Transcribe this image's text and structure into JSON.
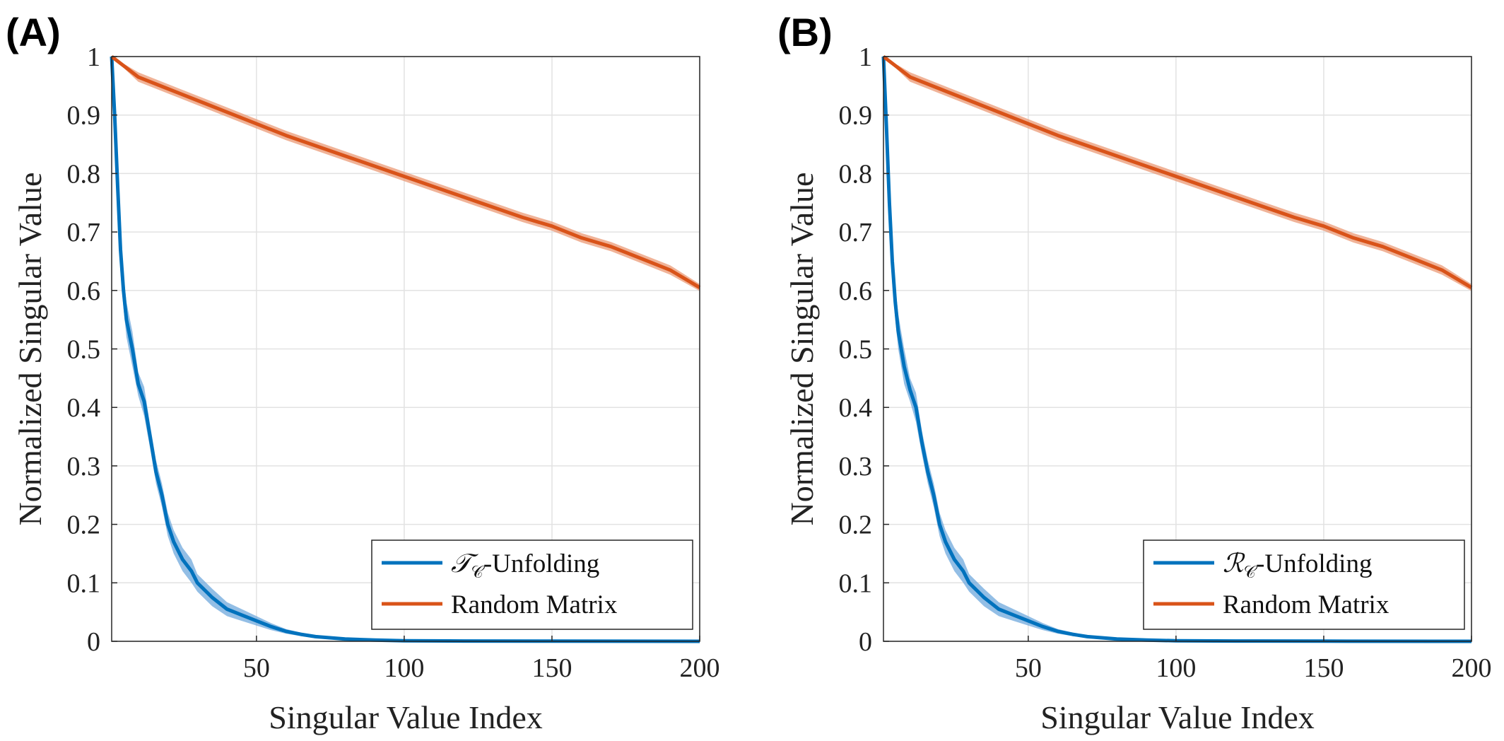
{
  "colors": {
    "blue": "#0072BD",
    "orange": "#D95319",
    "blue_band": "#6FA8DC",
    "orange_band": "#EB9A75"
  },
  "chart_data": [
    {
      "type": "line",
      "panel_label": "(A)",
      "xlabel": "Singular Value Index",
      "ylabel": "Normalized Singular Value",
      "xlim": [
        1,
        200
      ],
      "ylim": [
        0,
        1
      ],
      "x_ticks": [
        50,
        100,
        150,
        200
      ],
      "y_ticks": [
        0,
        0.1,
        0.2,
        0.3,
        0.4,
        0.5,
        0.6,
        0.7,
        0.8,
        0.9,
        1
      ],
      "y_tick_labels": [
        "0",
        "0.1",
        "0.2",
        "0.3",
        "0.4",
        "0.5",
        "0.6",
        "0.7",
        "0.8",
        "0.9",
        "1"
      ],
      "grid": true,
      "legend_position": "bottom-right",
      "series": [
        {
          "name_prefix": "𝒯",
          "name_sub": "𝒞",
          "name_suffix": "-Unfolding",
          "color": "#0072BD",
          "x": [
            1,
            2,
            3,
            4,
            5,
            6,
            8,
            10,
            12,
            14,
            16,
            18,
            20,
            22,
            25,
            28,
            30,
            35,
            40,
            45,
            50,
            55,
            60,
            65,
            70,
            80,
            90,
            100,
            120,
            150,
            200
          ],
          "y": [
            1.0,
            0.9,
            0.78,
            0.67,
            0.6,
            0.55,
            0.5,
            0.44,
            0.41,
            0.35,
            0.29,
            0.25,
            0.2,
            0.17,
            0.14,
            0.12,
            0.1,
            0.075,
            0.055,
            0.045,
            0.035,
            0.025,
            0.017,
            0.012,
            0.008,
            0.004,
            0.002,
            0.001,
            0.0005,
            0.0002,
            0.0
          ],
          "band": [
            0.0,
            0.02,
            0.04,
            0.04,
            0.03,
            0.03,
            0.03,
            0.02,
            0.025,
            0.02,
            0.02,
            0.02,
            0.02,
            0.02,
            0.02,
            0.02,
            0.015,
            0.015,
            0.012,
            0.01,
            0.008,
            0.006,
            0.004,
            0.003,
            0.002,
            0.001,
            0.001,
            0.0,
            0.0,
            0.0,
            0.0
          ]
        },
        {
          "name": "Random Matrix",
          "color": "#D95319",
          "x": [
            1,
            10,
            20,
            30,
            40,
            50,
            60,
            80,
            100,
            120,
            140,
            150,
            160,
            170,
            180,
            190,
            200
          ],
          "y": [
            1.0,
            0.965,
            0.945,
            0.925,
            0.905,
            0.885,
            0.865,
            0.83,
            0.795,
            0.76,
            0.725,
            0.71,
            0.69,
            0.675,
            0.655,
            0.635,
            0.605
          ],
          "band": [
            0.0,
            0.008,
            0.008,
            0.008,
            0.008,
            0.008,
            0.008,
            0.008,
            0.008,
            0.008,
            0.008,
            0.008,
            0.008,
            0.008,
            0.008,
            0.008,
            0.006
          ]
        }
      ]
    },
    {
      "type": "line",
      "panel_label": "(B)",
      "xlabel": "Singular Value Index",
      "ylabel": "Normalized Singular Value",
      "xlim": [
        1,
        200
      ],
      "ylim": [
        0,
        1
      ],
      "x_ticks": [
        50,
        100,
        150,
        200
      ],
      "y_ticks": [
        0,
        0.1,
        0.2,
        0.3,
        0.4,
        0.5,
        0.6,
        0.7,
        0.8,
        0.9,
        1
      ],
      "y_tick_labels": [
        "0",
        "0.1",
        "0.2",
        "0.3",
        "0.4",
        "0.5",
        "0.6",
        "0.7",
        "0.8",
        "0.9",
        "1"
      ],
      "grid": true,
      "legend_position": "bottom-right",
      "series": [
        {
          "name_prefix": "ℛ",
          "name_sub": "𝒞",
          "name_suffix": "-Unfolding",
          "color": "#0072BD",
          "x": [
            1,
            2,
            3,
            4,
            5,
            6,
            8,
            10,
            12,
            14,
            16,
            18,
            20,
            22,
            25,
            28,
            30,
            35,
            40,
            45,
            50,
            55,
            60,
            65,
            70,
            80,
            90,
            100,
            120,
            150,
            200
          ],
          "y": [
            1.0,
            0.88,
            0.75,
            0.65,
            0.58,
            0.53,
            0.47,
            0.43,
            0.4,
            0.34,
            0.29,
            0.25,
            0.2,
            0.17,
            0.14,
            0.12,
            0.1,
            0.075,
            0.055,
            0.045,
            0.035,
            0.025,
            0.017,
            0.012,
            0.008,
            0.004,
            0.002,
            0.001,
            0.0005,
            0.0002,
            0.0
          ],
          "band": [
            0.0,
            0.02,
            0.04,
            0.04,
            0.03,
            0.03,
            0.03,
            0.02,
            0.025,
            0.02,
            0.02,
            0.02,
            0.02,
            0.02,
            0.02,
            0.02,
            0.015,
            0.015,
            0.012,
            0.01,
            0.008,
            0.006,
            0.004,
            0.003,
            0.002,
            0.001,
            0.001,
            0.0,
            0.0,
            0.0,
            0.0
          ]
        },
        {
          "name": "Random Matrix",
          "color": "#D95319",
          "x": [
            1,
            10,
            20,
            30,
            40,
            50,
            60,
            80,
            100,
            120,
            140,
            150,
            160,
            170,
            180,
            190,
            200
          ],
          "y": [
            1.0,
            0.965,
            0.945,
            0.925,
            0.905,
            0.885,
            0.865,
            0.83,
            0.795,
            0.76,
            0.725,
            0.71,
            0.69,
            0.675,
            0.655,
            0.635,
            0.605
          ],
          "band": [
            0.0,
            0.008,
            0.008,
            0.008,
            0.008,
            0.008,
            0.008,
            0.008,
            0.008,
            0.008,
            0.008,
            0.008,
            0.008,
            0.008,
            0.008,
            0.008,
            0.006
          ]
        }
      ]
    }
  ]
}
